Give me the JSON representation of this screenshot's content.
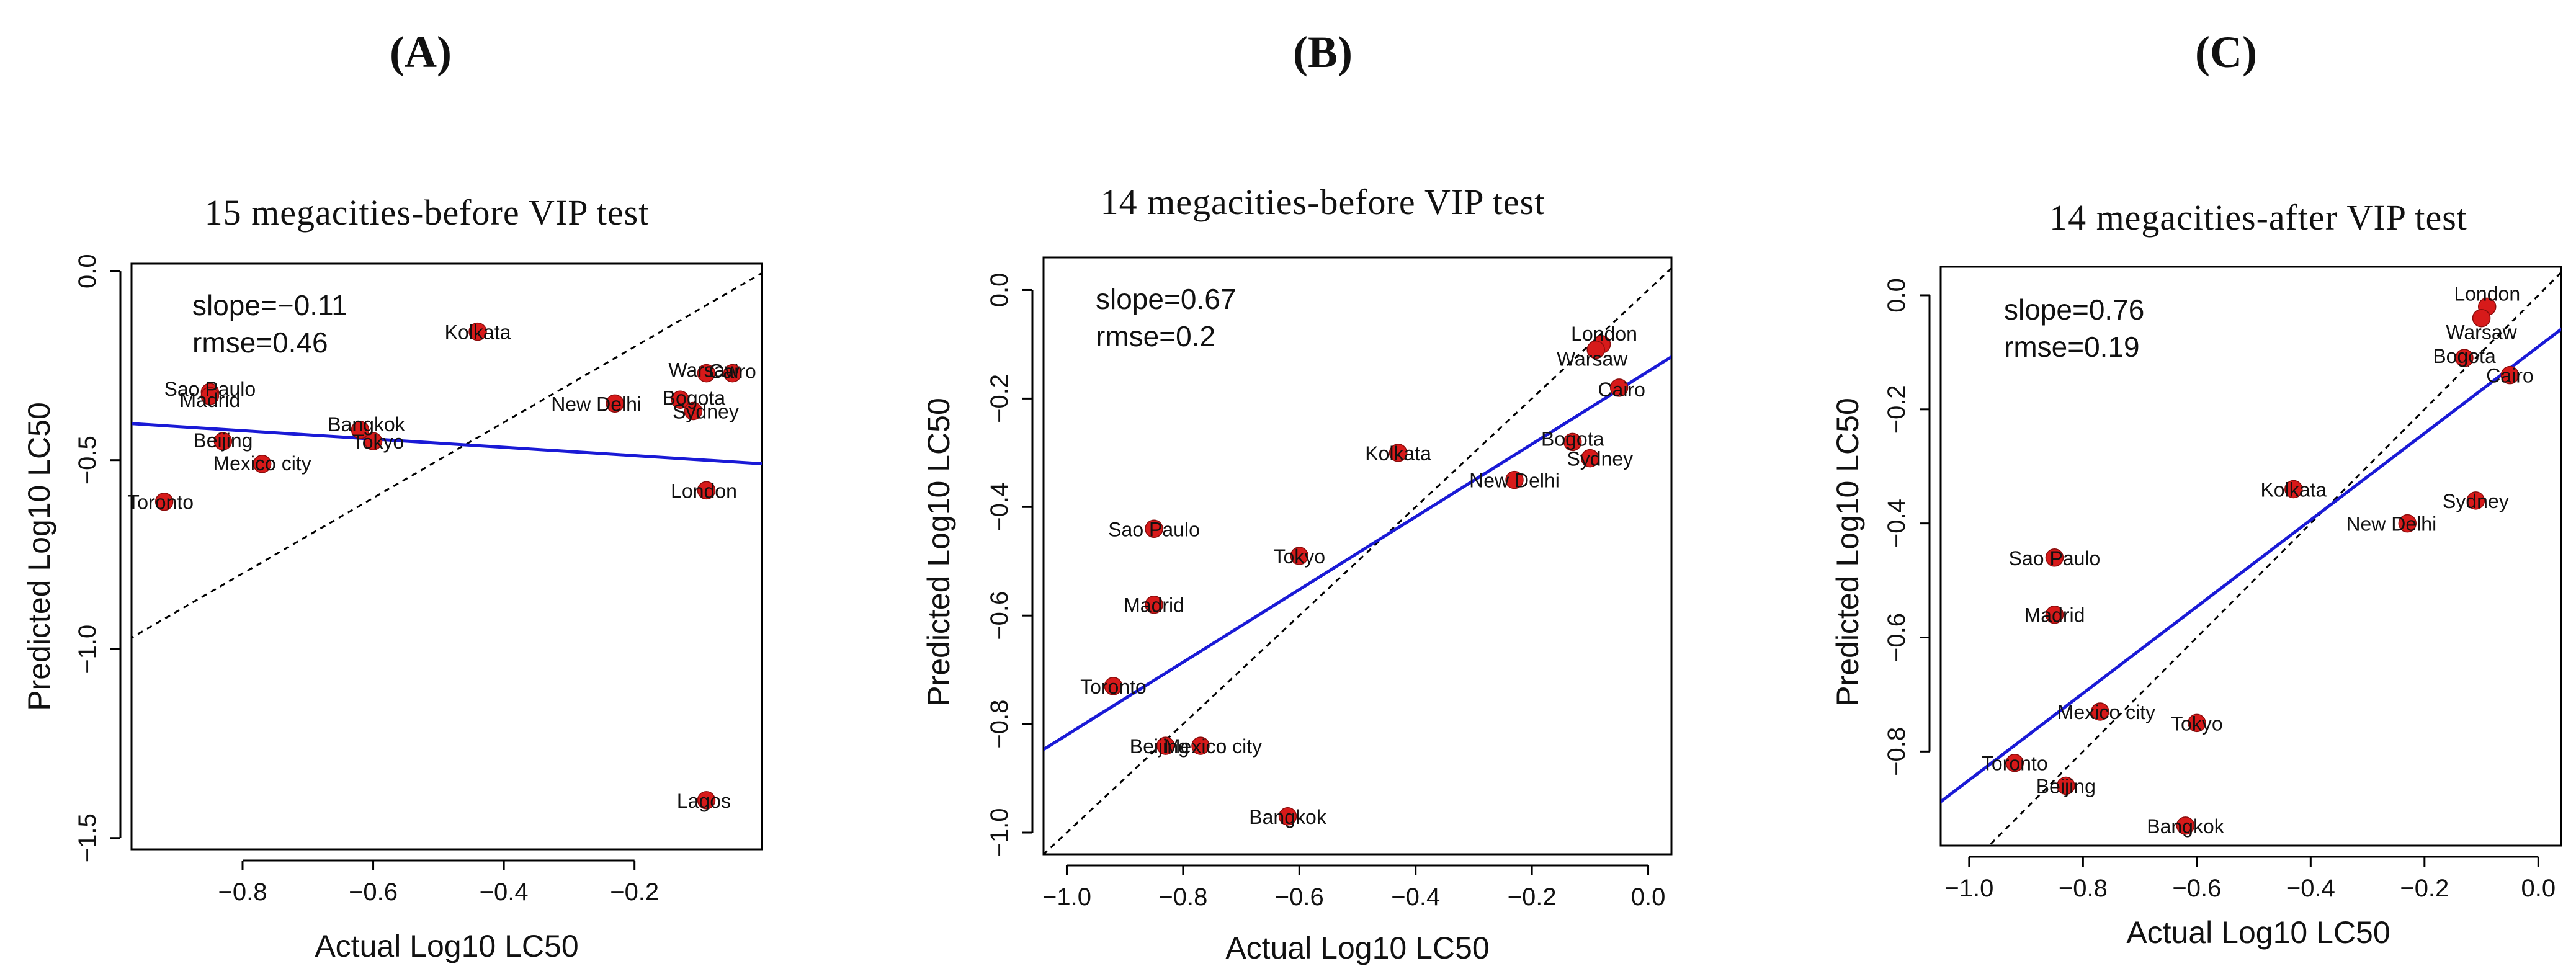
{
  "chart_data": [
    {
      "type": "scatter",
      "panel_label": "(A)",
      "title": "15 megacities-before VIP test",
      "xlabel": "Actual Log10 LC50",
      "ylabel": "Predicted Log10 LC50",
      "xlim": [
        -0.97,
        -0.005
      ],
      "ylim": [
        -1.53,
        0.02
      ],
      "xticks": [
        -0.8,
        -0.6,
        -0.4,
        -0.2
      ],
      "xtick_labels": [
        "−0.8",
        "−0.6",
        "−0.4",
        "−0.2"
      ],
      "yticks": [
        0.0,
        -0.5,
        -1.0,
        -1.5
      ],
      "ytick_labels": [
        "0.0",
        "−0.5",
        "−1.0",
        "−1.5"
      ],
      "stats": {
        "slope": "slope=−0.11",
        "rmse": "rmse=0.46"
      },
      "colors": {
        "points": "#d71a1a",
        "fit": "#1a1ad6",
        "identity": "#000000"
      },
      "fit_line": {
        "slope": -0.11,
        "intercept": -0.51
      },
      "identity_line": true,
      "points": [
        {
          "label": "Kolkata",
          "x": -0.44,
          "y": -0.16
        },
        {
          "label": "Sao Paulo",
          "x": -0.85,
          "y": -0.32
        },
        {
          "label": "Madrid",
          "x": -0.85,
          "y": -0.33
        },
        {
          "label": "Beijing",
          "x": -0.83,
          "y": -0.45
        },
        {
          "label": "Bangkok",
          "x": -0.62,
          "y": -0.42
        },
        {
          "label": "Tokyo",
          "x": -0.6,
          "y": -0.45
        },
        {
          "label": "Mexico city",
          "x": -0.77,
          "y": -0.51
        },
        {
          "label": "Toronto",
          "x": -0.92,
          "y": -0.61
        },
        {
          "label": "New Delhi",
          "x": -0.23,
          "y": -0.35
        },
        {
          "label": "Bogota",
          "x": -0.13,
          "y": -0.34
        },
        {
          "label": "Sydney",
          "x": -0.11,
          "y": -0.37
        },
        {
          "label": "Warsaw",
          "x": -0.09,
          "y": -0.27
        },
        {
          "label": "Cairo",
          "x": -0.05,
          "y": -0.27
        },
        {
          "label": "London",
          "x": -0.09,
          "y": -0.58
        },
        {
          "label": "Lagos",
          "x": -0.09,
          "y": -1.4
        }
      ]
    },
    {
      "type": "scatter",
      "panel_label": "(B)",
      "title": "14 megacities-before VIP test",
      "xlabel": "Actual Log10 LC50",
      "ylabel": "Predicted Log10 LC50",
      "xlim": [
        -1.04,
        0.04
      ],
      "ylim": [
        -1.04,
        0.06
      ],
      "xticks": [
        -1.0,
        -0.8,
        -0.6,
        -0.4,
        -0.2,
        0.0
      ],
      "xtick_labels": [
        "−1.0",
        "−0.8",
        "−0.6",
        "−0.4",
        "−0.2",
        "0.0"
      ],
      "yticks": [
        0.0,
        -0.2,
        -0.4,
        -0.6,
        -0.8,
        -1.0
      ],
      "ytick_labels": [
        "0.0",
        "−0.2",
        "−0.4",
        "−0.6",
        "−0.8",
        "−1.0"
      ],
      "stats": {
        "slope": "slope=0.67",
        "rmse": "rmse=0.2"
      },
      "colors": {
        "points": "#d71a1a",
        "fit": "#1a1ad6",
        "identity": "#000000"
      },
      "fit_line": {
        "slope": 0.67,
        "intercept": -0.15
      },
      "identity_line": true,
      "points": [
        {
          "label": "London",
          "x": -0.08,
          "y": -0.1
        },
        {
          "label": "Warsaw",
          "x": -0.09,
          "y": -0.11
        },
        {
          "label": "Cairo",
          "x": -0.05,
          "y": -0.18
        },
        {
          "label": "Kolkata",
          "x": -0.43,
          "y": -0.3
        },
        {
          "label": "Bogota",
          "x": -0.13,
          "y": -0.28
        },
        {
          "label": "Sydney",
          "x": -0.1,
          "y": -0.31
        },
        {
          "label": "New Delhi",
          "x": -0.23,
          "y": -0.35
        },
        {
          "label": "Sao Paulo",
          "x": -0.85,
          "y": -0.44
        },
        {
          "label": "Tokyo",
          "x": -0.6,
          "y": -0.49
        },
        {
          "label": "Madrid",
          "x": -0.85,
          "y": -0.58
        },
        {
          "label": "Toronto",
          "x": -0.92,
          "y": -0.73
        },
        {
          "label": "Beijing",
          "x": -0.83,
          "y": -0.84
        },
        {
          "label": "Mexico city",
          "x": -0.77,
          "y": -0.84
        },
        {
          "label": "Bangkok",
          "x": -0.62,
          "y": -0.97
        }
      ]
    },
    {
      "type": "scatter",
      "panel_label": "(C)",
      "title": "14 megacities-after VIP test",
      "xlabel": "Actual Log10 LC50",
      "ylabel": "Predicted Log10 LC50",
      "xlim": [
        -1.05,
        0.04
      ],
      "ylim": [
        -0.965,
        0.05
      ],
      "xticks": [
        -1.0,
        -0.8,
        -0.6,
        -0.4,
        -0.2,
        0.0
      ],
      "xtick_labels": [
        "−1.0",
        "−0.8",
        "−0.6",
        "−0.4",
        "−0.2",
        "0.0"
      ],
      "yticks": [
        0.0,
        -0.2,
        -0.4,
        -0.6,
        -0.8
      ],
      "ytick_labels": [
        "0.0",
        "−0.2",
        "−0.4",
        "−0.6",
        "−0.8"
      ],
      "stats": {
        "slope": "slope=0.76",
        "rmse": "rmse=0.19"
      },
      "colors": {
        "points": "#d71a1a",
        "fit": "#1a1ad6",
        "identity": "#000000"
      },
      "fit_line": {
        "slope": 0.76,
        "intercept": -0.09
      },
      "identity_line": true,
      "points": [
        {
          "label": "London",
          "x": -0.09,
          "y": -0.02
        },
        {
          "label": "Warsaw",
          "x": -0.1,
          "y": -0.04
        },
        {
          "label": "Bogota",
          "x": -0.13,
          "y": -0.11
        },
        {
          "label": "Cairo",
          "x": -0.05,
          "y": -0.14
        },
        {
          "label": "Kolkata",
          "x": -0.43,
          "y": -0.34
        },
        {
          "label": "Sydney",
          "x": -0.11,
          "y": -0.36
        },
        {
          "label": "New Delhi",
          "x": -0.23,
          "y": -0.4
        },
        {
          "label": "Sao Paulo",
          "x": -0.85,
          "y": -0.46
        },
        {
          "label": "Madrid",
          "x": -0.85,
          "y": -0.56
        },
        {
          "label": "Mexico city",
          "x": -0.77,
          "y": -0.73
        },
        {
          "label": "Tokyo",
          "x": -0.6,
          "y": -0.75
        },
        {
          "label": "Toronto",
          "x": -0.92,
          "y": -0.82
        },
        {
          "label": "Beijing",
          "x": -0.83,
          "y": -0.86
        },
        {
          "label": "Bangkok",
          "x": -0.62,
          "y": -0.93
        }
      ]
    }
  ]
}
